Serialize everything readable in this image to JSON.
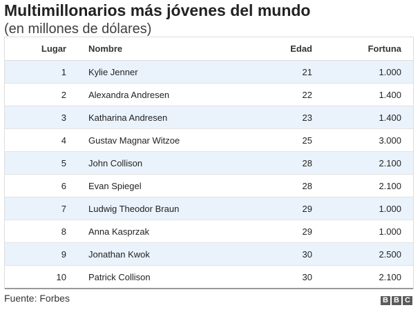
{
  "title": "Multimillonarios más jóvenes del mundo",
  "subtitle": "(en millones de dólares)",
  "headers": [
    "Lugar",
    "Nombre",
    "Edad",
    "Fortuna"
  ],
  "chart_data": {
    "type": "table",
    "title": "Multimillonarios más jóvenes del mundo",
    "subtitle": "(en millones de dólares)",
    "columns": [
      "Lugar",
      "Nombre",
      "Edad",
      "Fortuna"
    ],
    "rows": [
      [
        "1",
        "Kylie Jenner",
        "21",
        "1.000"
      ],
      [
        "2",
        "Alexandra Andresen",
        "22",
        "1.400"
      ],
      [
        "3",
        "Katharina Andresen",
        "23",
        "1.400"
      ],
      [
        "4",
        "Gustav Magnar Witzoe",
        "25",
        "3.000"
      ],
      [
        "5",
        "John Collison",
        "28",
        "2.100"
      ],
      [
        "6",
        "Evan Spiegel",
        "28",
        "2.100"
      ],
      [
        "7",
        "Ludwig Theodor Braun",
        "29",
        "1.000"
      ],
      [
        "8",
        "Anna Kasprzak",
        "29",
        "1.000"
      ],
      [
        "9",
        "Jonathan Kwok",
        "30",
        "2.500"
      ],
      [
        "10",
        "Patrick Collison",
        "30",
        "2.100"
      ]
    ]
  },
  "source": "Fuente: Forbes",
  "logo": [
    "B",
    "B",
    "C"
  ],
  "colors": {
    "row_stripe": "#eaf3fc",
    "logo_block": "#5b5b5b"
  }
}
